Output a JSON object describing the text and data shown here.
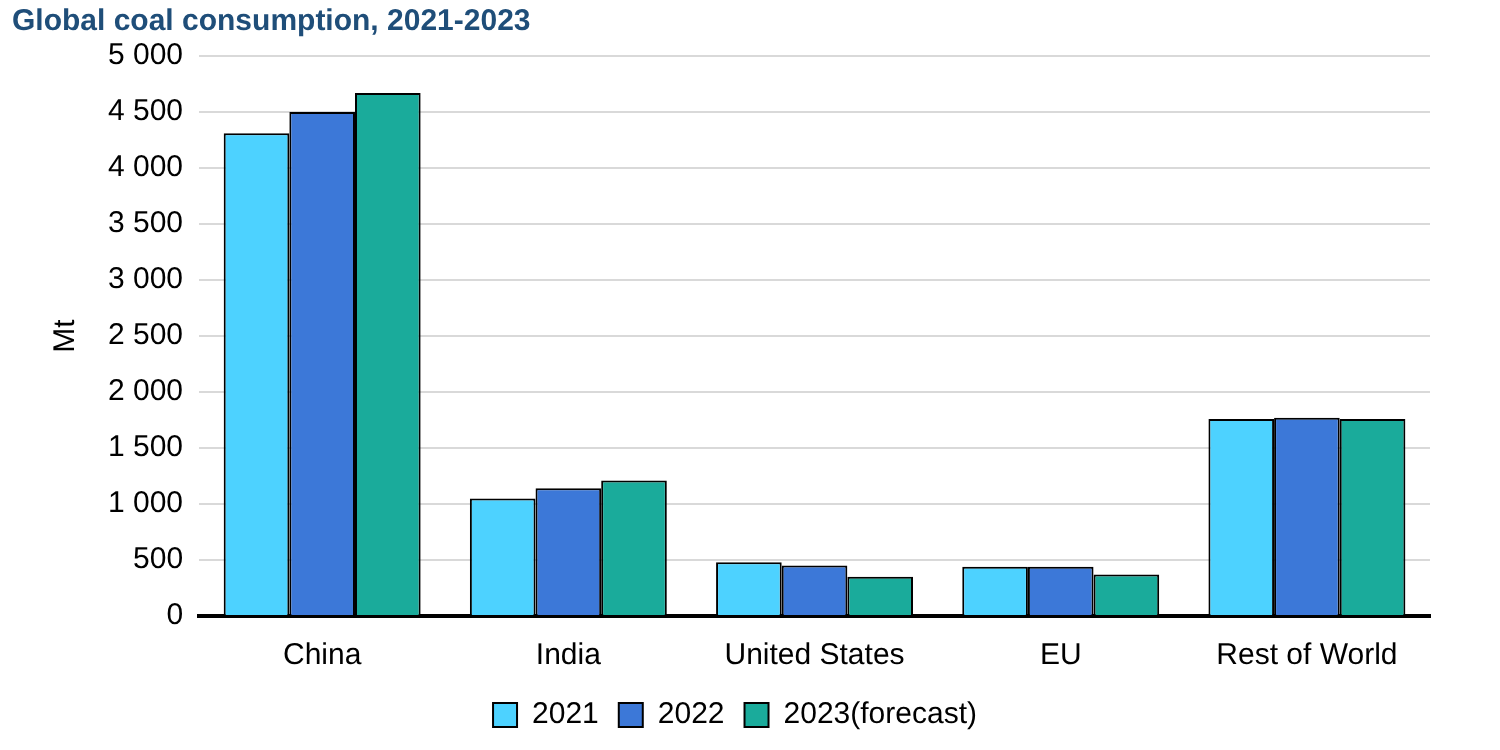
{
  "chart_data": {
    "type": "bar",
    "title": "Global coal consumption, 2021-2023",
    "ylabel": "Mt",
    "categories": [
      "China",
      "India",
      "United States",
      "EU",
      "Rest of World"
    ],
    "series": [
      {
        "name": "2021",
        "color": "#4dd2ff",
        "values": [
          4310,
          1050,
          480,
          440,
          1760
        ]
      },
      {
        "name": "2022",
        "color": "#3c78d8",
        "values": [
          4500,
          1140,
          450,
          440,
          1770
        ]
      },
      {
        "name": "2023(forecast)",
        "color": "#1aab9b",
        "values": [
          4670,
          1210,
          350,
          370,
          1760
        ]
      }
    ],
    "ylim": [
      0,
      5000
    ],
    "yticks": [
      {
        "value": 0,
        "label": "0"
      },
      {
        "value": 500,
        "label": "500"
      },
      {
        "value": 1000,
        "label": "1 000"
      },
      {
        "value": 1500,
        "label": "1 500"
      },
      {
        "value": 2000,
        "label": "2 000"
      },
      {
        "value": 2500,
        "label": "2 500"
      },
      {
        "value": 3000,
        "label": "3 000"
      },
      {
        "value": 3500,
        "label": "3 500"
      },
      {
        "value": 4000,
        "label": "4 000"
      },
      {
        "value": 4500,
        "label": "4 500"
      },
      {
        "value": 5000,
        "label": "5 000"
      }
    ],
    "grid": "y",
    "legend": "bottom"
  }
}
